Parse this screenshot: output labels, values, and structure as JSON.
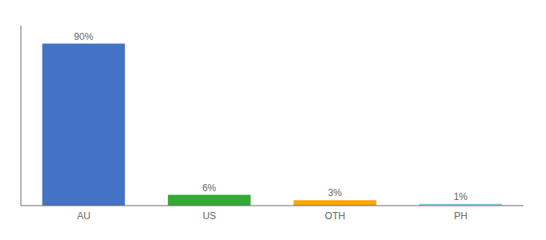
{
  "chart_data": {
    "type": "bar",
    "categories": [
      "AU",
      "US",
      "OTH",
      "PH"
    ],
    "values": [
      90,
      6,
      3,
      1
    ],
    "value_labels": [
      "90%",
      "6%",
      "3%",
      "1%"
    ],
    "colors": [
      "#4472C4",
      "#33AA33",
      "#FFA500",
      "#87CEEB"
    ],
    "ylim": [
      0,
      100
    ],
    "data_labels": true,
    "tick_labels": "x",
    "grid": false
  }
}
